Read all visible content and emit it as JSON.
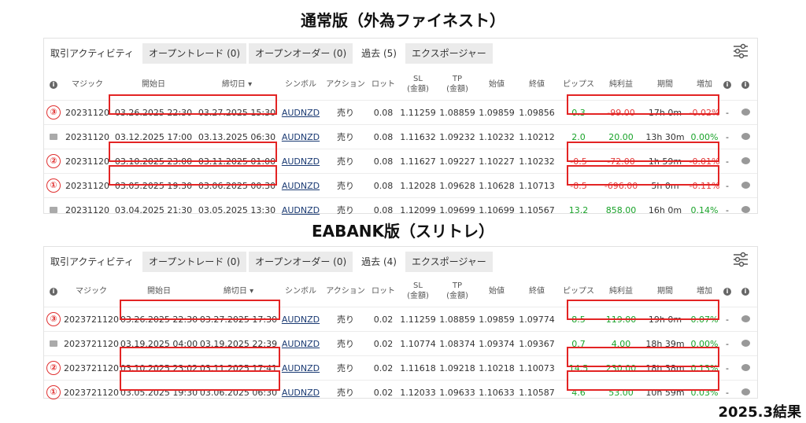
{
  "titles": {
    "top": "通常版（外為ファイネスト）",
    "bottom": "EABANK版（スリトレ）",
    "result": "2025.3結果"
  },
  "tabs": {
    "activity": "取引アクティビティ",
    "open_trades": "オープントレード (0)",
    "open_orders": "オープンオーダー (0)",
    "exposure": "エクスポージャー"
  },
  "panel1_history_tab": "過去 (5)",
  "panel2_history_tab": "過去 (4)",
  "headers": {
    "magic": "マジック",
    "start": "開始日",
    "end": "締切日 ▾",
    "symbol": "シンボル",
    "action": "アクション",
    "lot": "ロット",
    "sl1": "SL",
    "sl2": "(金額)",
    "tp1": "TP",
    "tp2": "(金額)",
    "open": "始値",
    "close": "終値",
    "pips": "ピップス",
    "profit": "純利益",
    "period": "期間",
    "gain": "増加"
  },
  "panel1_rows": [
    {
      "marker": "③",
      "magic": "20231120",
      "start": "03.26.2025 22:30",
      "end": "03.27.2025 15:30",
      "symbol": "AUDNZD",
      "action": "売り",
      "lot": "0.08",
      "sl": "1.11259",
      "tp": "1.08859",
      "open": "1.09859",
      "close": "1.09856",
      "pips": "0.3",
      "profit": "-99.00",
      "period": "17h 0m",
      "gain": "-0.02%",
      "dash": "-"
    },
    {
      "marker": "",
      "magic": "20231120",
      "start": "03.12.2025 17:00",
      "end": "03.13.2025 06:30",
      "symbol": "AUDNZD",
      "action": "売り",
      "lot": "0.08",
      "sl": "1.11632",
      "tp": "1.09232",
      "open": "1.10232",
      "close": "1.10212",
      "pips": "2.0",
      "profit": "20.00",
      "period": "13h 30m",
      "gain": "0.00%",
      "dash": "-"
    },
    {
      "marker": "②",
      "magic": "20231120",
      "start": "03.10.2025 23:00",
      "end": "03.11.2025 01:00",
      "symbol": "AUDNZD",
      "action": "売り",
      "lot": "0.08",
      "sl": "1.11627",
      "tp": "1.09227",
      "open": "1.10227",
      "close": "1.10232",
      "pips": "-0.5",
      "profit": "-72.00",
      "period": "1h 59m",
      "gain": "-0.01%",
      "dash": "-"
    },
    {
      "marker": "①",
      "magic": "20231120",
      "start": "03.05.2025 19:30",
      "end": "03.06.2025 00:30",
      "symbol": "AUDNZD",
      "action": "売り",
      "lot": "0.08",
      "sl": "1.12028",
      "tp": "1.09628",
      "open": "1.10628",
      "close": "1.10713",
      "pips": "-8.5",
      "profit": "-696.00",
      "period": "5h 0m",
      "gain": "-0.11%",
      "dash": "-"
    },
    {
      "marker": "",
      "magic": "20231120",
      "start": "03.04.2025 21:30",
      "end": "03.05.2025 13:30",
      "symbol": "AUDNZD",
      "action": "売り",
      "lot": "0.08",
      "sl": "1.12099",
      "tp": "1.09699",
      "open": "1.10699",
      "close": "1.10567",
      "pips": "13.2",
      "profit": "858.00",
      "period": "16h 0m",
      "gain": "0.14%",
      "dash": "-"
    }
  ],
  "panel2_rows": [
    {
      "marker": "③",
      "magic": "2023721120",
      "start": "03.26.2025 22:30",
      "end": "03.27.2025 17:30",
      "symbol": "AUDNZD",
      "action": "売り",
      "lot": "0.02",
      "sl": "1.11259",
      "tp": "1.08859",
      "open": "1.09859",
      "close": "1.09774",
      "pips": "8.5",
      "profit": "119.00",
      "period": "19h 0m",
      "gain": "0.07%",
      "dash": "-"
    },
    {
      "marker": "",
      "magic": "2023721120",
      "start": "03.19.2025 04:00",
      "end": "03.19.2025 22:39",
      "symbol": "AUDNZD",
      "action": "売り",
      "lot": "0.02",
      "sl": "1.10774",
      "tp": "1.08374",
      "open": "1.09374",
      "close": "1.09367",
      "pips": "0.7",
      "profit": "4.00",
      "period": "18h 39m",
      "gain": "0.00%",
      "dash": "-"
    },
    {
      "marker": "②",
      "magic": "2023721120",
      "start": "03.10.2025 23:02",
      "end": "03.11.2025 17:41",
      "symbol": "AUDNZD",
      "action": "売り",
      "lot": "0.02",
      "sl": "1.11618",
      "tp": "1.09218",
      "open": "1.10218",
      "close": "1.10073",
      "pips": "14.5",
      "profit": "230.00",
      "period": "18h 38m",
      "gain": "0.13%",
      "dash": "-"
    },
    {
      "marker": "①",
      "magic": "2023721120",
      "start": "03.05.2025 19:30",
      "end": "03.06.2025 06:30",
      "symbol": "AUDNZD",
      "action": "売り",
      "lot": "0.02",
      "sl": "1.12033",
      "tp": "1.09633",
      "open": "1.10633",
      "close": "1.10587",
      "pips": "4.6",
      "profit": "53.00",
      "period": "10h 59m",
      "gain": "0.03%",
      "dash": "-"
    }
  ],
  "colors": {
    "positive": "#1aa32a",
    "negative": "#e23b3b",
    "highlight": "#e32424"
  },
  "icons": [
    "info-icon",
    "tag-icon",
    "comment-icon",
    "filter-settings-icon"
  ]
}
